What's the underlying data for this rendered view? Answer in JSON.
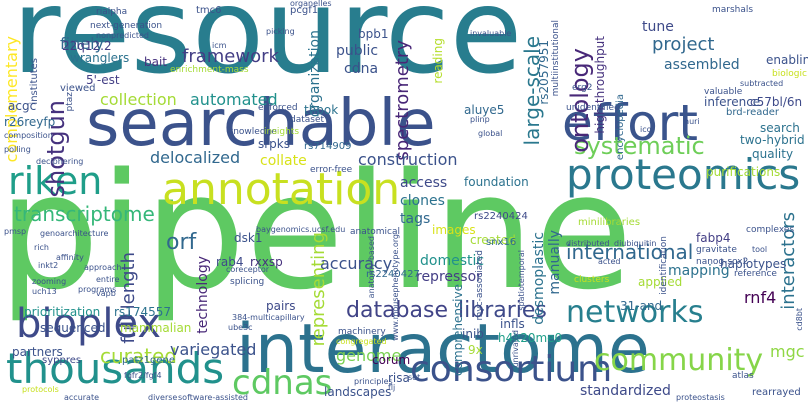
{
  "words": [
    {
      "text": "resource",
      "color": "#287d8e"
    },
    {
      "text": "pipeline",
      "color": "#5ec962"
    },
    {
      "text": "interactome",
      "color": "#2c728e"
    },
    {
      "text": "searchable",
      "color": "#3b528b"
    },
    {
      "text": "annotation",
      "color": "#c8e020"
    },
    {
      "text": "proteomics",
      "color": "#2a788e"
    },
    {
      "text": "effort",
      "color": "#3a548c"
    },
    {
      "text": "riken",
      "color": "#1f9e89"
    },
    {
      "text": "bioplex",
      "color": "#3e4a89"
    },
    {
      "text": "thousands",
      "color": "#21918c"
    },
    {
      "text": "consortium",
      "color": "#3b528b"
    },
    {
      "text": "cdnas",
      "color": "#5ec962"
    },
    {
      "text": "networks",
      "color": "#277f8e"
    },
    {
      "text": "community",
      "color": "#86d549"
    },
    {
      "text": "database",
      "color": "#414487"
    },
    {
      "text": "libraries",
      "color": "#3e4989"
    },
    {
      "text": "systematic",
      "color": "#6ece58"
    },
    {
      "text": "ontology",
      "color": "#482878"
    },
    {
      "text": "shotgun",
      "color": "#46327e"
    },
    {
      "text": "transcriptome",
      "color": "#35b779"
    },
    {
      "text": "curated",
      "color": "#a5db36"
    },
    {
      "text": "variegated",
      "color": "#3b528b"
    },
    {
      "text": "orf",
      "color": "#31688e"
    },
    {
      "text": "framework",
      "color": "#433e85"
    },
    {
      "text": "international",
      "color": "#31688e"
    },
    {
      "text": "spectrometry",
      "color": "#482677"
    },
    {
      "text": "large-scale",
      "color": "#2a788e"
    },
    {
      "text": "representing",
      "color": "#a5db36"
    },
    {
      "text": "construction",
      "color": "#3b528b"
    },
    {
      "text": "delocalized",
      "color": "#31688e"
    },
    {
      "text": "full-length",
      "color": "#3e4a89"
    },
    {
      "text": "project",
      "color": "#31688e"
    },
    {
      "text": "collection",
      "color": "#a5db36"
    },
    {
      "text": "automated",
      "color": "#21918c"
    },
    {
      "text": "interactors",
      "color": "#2c728e"
    },
    {
      "text": "genome",
      "color": "#7ad151"
    },
    {
      "text": "accuracy",
      "color": "#3b528b"
    },
    {
      "text": "standardized",
      "color": "#3e4a89"
    },
    {
      "text": "mgc",
      "color": "#8fd744"
    },
    {
      "text": "access",
      "color": "#3e4a89"
    },
    {
      "text": "tags",
      "color": "#31688e"
    },
    {
      "text": "clones",
      "color": "#2c728e"
    },
    {
      "text": "repressor",
      "color": "#433e85"
    },
    {
      "text": "manually",
      "color": "#31688e"
    },
    {
      "text": "desmoplastic",
      "color": "#2c728e"
    },
    {
      "text": "domestic",
      "color": "#21918c"
    },
    {
      "text": "technology",
      "color": "#482878"
    },
    {
      "text": "complementary",
      "color": "#fde725"
    },
    {
      "text": "finely",
      "color": "#31688e"
    },
    {
      "text": "cdna",
      "color": "#3b528b"
    },
    {
      "text": "public",
      "color": "#3b528b"
    },
    {
      "text": "assembled",
      "color": "#31688e"
    },
    {
      "text": "tune",
      "color": "#3e4a89"
    },
    {
      "text": "mammalian",
      "color": "#a5db36"
    },
    {
      "text": "c57bl/6n",
      "color": "#3e4a89"
    },
    {
      "text": "quality",
      "color": "#2c728e"
    },
    {
      "text": "two-hybrid",
      "color": "#2c728e"
    },
    {
      "text": "rnf4",
      "color": "#440154"
    },
    {
      "text": "mapping",
      "color": "#2c728e"
    },
    {
      "text": "haplotypes",
      "color": "#3b528b"
    },
    {
      "text": "comprehensive",
      "color": "#2c728e"
    },
    {
      "text": "created",
      "color": "#a5db36"
    },
    {
      "text": "landscapes",
      "color": "#3b528b"
    },
    {
      "text": "foundation",
      "color": "#2c728e"
    },
    {
      "text": "fabp4",
      "color": "#433e85"
    },
    {
      "text": "high-throughput",
      "color": "#46327e"
    },
    {
      "text": "reading",
      "color": "#b5de2b"
    },
    {
      "text": "enabling",
      "color": "#3b528b"
    },
    {
      "text": "5'-est",
      "color": "#433e85"
    },
    {
      "text": "wranglers",
      "color": "#2c728e"
    },
    {
      "text": "22q12.2",
      "color": "#433e85"
    },
    {
      "text": "bait",
      "color": "#46327e"
    },
    {
      "text": "sequenced",
      "color": "#3b528b"
    },
    {
      "text": "partners",
      "color": "#3b528b"
    },
    {
      "text": "prioritization",
      "color": "#21918c"
    },
    {
      "text": "rs174557",
      "color": "#2c728e"
    },
    {
      "text": "patz1gene",
      "color": "#31688e"
    },
    {
      "text": "syppres",
      "color": "#3e4a89"
    },
    {
      "text": "collate",
      "color": "#d8e219"
    },
    {
      "text": "rs714909",
      "color": "#31688e"
    },
    {
      "text": "thpok",
      "color": "#2c728e"
    },
    {
      "text": "organization",
      "color": "#2c728e"
    },
    {
      "text": "bpb1",
      "color": "#3b528b"
    },
    {
      "text": "aluye5",
      "color": "#31688e"
    },
    {
      "text": "inib",
      "color": "#3b528b"
    },
    {
      "text": "h4k20me0",
      "color": "#1f9e89"
    },
    {
      "text": "infls",
      "color": "#3b528b"
    },
    {
      "text": "corum",
      "color": "#440154"
    },
    {
      "text": "risa",
      "color": "#3b528b"
    },
    {
      "text": "9x",
      "color": "#a5db36"
    },
    {
      "text": "rs2240427",
      "color": "#31688e"
    },
    {
      "text": "rs2240424",
      "color": "#3e4a89"
    },
    {
      "text": "snx16",
      "color": "#31688e"
    },
    {
      "text": "31-and",
      "color": "#31688e"
    },
    {
      "text": "applied",
      "color": "#a5db36"
    },
    {
      "text": "images",
      "color": "#d8e219"
    },
    {
      "text": "dsk1",
      "color": "#3b528b"
    },
    {
      "text": "rab4",
      "color": "#3e4a89"
    },
    {
      "text": "rxxsp",
      "color": "#46327e"
    },
    {
      "text": "pairs",
      "color": "#3e4a89"
    },
    {
      "text": "r26reyfp",
      "color": "#31688e"
    },
    {
      "text": "acgc",
      "color": "#3b528b"
    },
    {
      "text": "srpks",
      "color": "#3b528b"
    },
    {
      "text": "rs2057951",
      "color": "#31688e"
    },
    {
      "text": "inference",
      "color": "#3b528b"
    },
    {
      "text": "search",
      "color": "#2c728e"
    },
    {
      "text": "brd-reader",
      "color": "#31688e"
    },
    {
      "text": "purifications",
      "color": "#a5db36"
    },
    {
      "text": "encyclopedia",
      "color": "#31688e"
    },
    {
      "text": "minilibraries",
      "color": "#a5db36"
    },
    {
      "text": "viewed",
      "color": "#3b528b"
    },
    {
      "text": "institutes",
      "color": "#3b528b"
    },
    {
      "text": "tmc6",
      "color": "#3b528b"
    },
    {
      "text": "pcgf1",
      "color": "#3b528b"
    },
    {
      "text": "rialpha",
      "color": "#3b528b"
    },
    {
      "text": "next-generation",
      "color": "#3b528b"
    },
    {
      "text": "marshals",
      "color": "#3b528b"
    },
    {
      "text": "biologic",
      "color": "#c8e020"
    },
    {
      "text": "multiinstitutional",
      "color": "#3b528b"
    },
    {
      "text": "erg2",
      "color": "#3b528b"
    },
    {
      "text": "enrichment-mass",
      "color": "#a5db36"
    },
    {
      "text": "ptaz",
      "color": "#3b528b"
    },
    {
      "text": "baygenomics.ucsf.edu",
      "color": "#3b528b"
    },
    {
      "text": "www.mousephenotype.org",
      "color": "#3b528b"
    },
    {
      "text": "myc-associated",
      "color": "#3b528b"
    },
    {
      "text": "error-free",
      "color": "#3b528b"
    },
    {
      "text": "anatomical",
      "color": "#3b528b"
    },
    {
      "text": "knowledge",
      "color": "#3b528b"
    },
    {
      "text": "insights",
      "color": "#a5db36"
    },
    {
      "text": "dataset",
      "color": "#3b528b"
    },
    {
      "text": "enforced",
      "color": "#3b528b"
    },
    {
      "text": "distributed",
      "color": "#3b528b"
    },
    {
      "text": "diubiquitin",
      "color": "#3b528b"
    },
    {
      "text": "unidentified",
      "color": "#3b528b"
    },
    {
      "text": "valuable",
      "color": "#3b528b"
    },
    {
      "text": "complexes",
      "color": "#3b528b"
    },
    {
      "text": "gravitate",
      "color": "#3b528b"
    },
    {
      "text": "nanog-sox2",
      "color": "#3b528b"
    },
    {
      "text": "reference",
      "color": "#3b528b"
    },
    {
      "text": "identification",
      "color": "#3b528b"
    },
    {
      "text": "clusters",
      "color": "#c8e020"
    },
    {
      "text": "machinery",
      "color": "#3b528b"
    },
    {
      "text": "384-multicapillary",
      "color": "#3b528b"
    },
    {
      "text": "fgfr2/fgf4",
      "color": "#3b528b"
    },
    {
      "text": "ube3c",
      "color": "#3b528b"
    },
    {
      "text": "congregated",
      "color": "#c8e020"
    },
    {
      "text": "principles",
      "color": "#3b528b"
    },
    {
      "text": "atlas",
      "color": "#3b528b"
    },
    {
      "text": "proteostasis",
      "color": "#3b528b"
    },
    {
      "text": "rearrayed",
      "color": "#3b528b"
    },
    {
      "text": "diverse",
      "color": "#3b528b"
    },
    {
      "text": "software-assisted",
      "color": "#3b528b"
    },
    {
      "text": "accurate",
      "color": "#3b528b"
    },
    {
      "text": "programs",
      "color": "#3b528b"
    },
    {
      "text": "protocols",
      "color": "#c8e020"
    },
    {
      "text": "splicing",
      "color": "#3b528b"
    },
    {
      "text": "coreceptor",
      "color": "#3b528b"
    },
    {
      "text": "approach",
      "color": "#3b528b"
    },
    {
      "text": "entire",
      "color": "#3b528b"
    },
    {
      "text": "vapb",
      "color": "#3b528b"
    },
    {
      "text": "uch13",
      "color": "#3b528b"
    },
    {
      "text": "zooming",
      "color": "#3b528b"
    },
    {
      "text": "affinity",
      "color": "#3b528b"
    },
    {
      "text": "inkt2",
      "color": "#3b528b"
    },
    {
      "text": "rich",
      "color": "#3b528b"
    },
    {
      "text": "genoarchitecture",
      "color": "#3b528b"
    },
    {
      "text": "pmsp",
      "color": "#3b528b"
    },
    {
      "text": "composition",
      "color": "#3b528b"
    },
    {
      "text": "polling",
      "color": "#3b528b"
    },
    {
      "text": "deciphering",
      "color": "#3b528b"
    },
    {
      "text": "ico",
      "color": "#3b528b"
    },
    {
      "text": "picking",
      "color": "#3b528b"
    },
    {
      "text": "organelles",
      "color": "#3b528b"
    },
    {
      "text": "invaluable",
      "color": "#3b528b"
    },
    {
      "text": "nonpredicted",
      "color": "#3b528b"
    },
    {
      "text": "subtracted",
      "color": "#3b528b"
    },
    {
      "text": "huri",
      "color": "#3b528b"
    },
    {
      "text": "acted",
      "color": "#3b528b"
    },
    {
      "text": "spatiotemporal",
      "color": "#3b528b"
    },
    {
      "text": "unrivaled",
      "color": "#3b528b"
    },
    {
      "text": "anatomy-based",
      "color": "#3b528b"
    },
    {
      "text": "tool",
      "color": "#3b528b"
    },
    {
      "text": "set",
      "color": "#3b528b"
    },
    {
      "text": "flj",
      "color": "#3b528b"
    },
    {
      "text": "plinp",
      "color": "#3b528b"
    },
    {
      "text": "global",
      "color": "#3b528b"
    },
    {
      "text": "icm",
      "color": "#3b528b"
    },
    {
      "text": "cd8bt",
      "color": "#3b528b"
    }
  ]
}
